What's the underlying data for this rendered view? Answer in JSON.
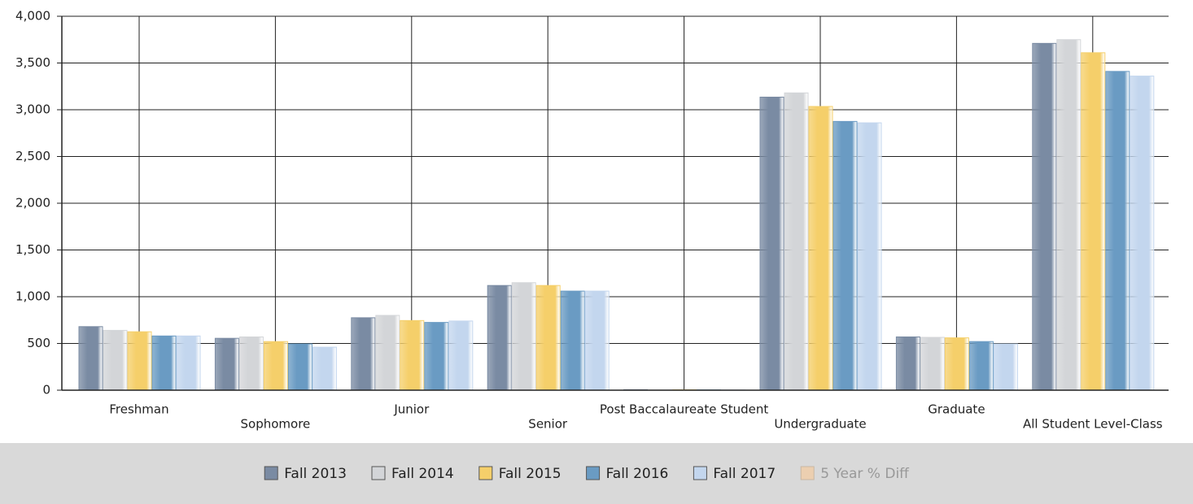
{
  "chart_data": {
    "type": "bar",
    "categories": [
      "Freshman",
      "Sophomore",
      "Junior",
      "Senior",
      "Post Baccalaureate Student",
      "Undergraduate",
      "Graduate",
      "All Student Level-Class"
    ],
    "series": [
      {
        "name": "Fall 2013",
        "color": "#7a8ba3",
        "values": [
          680,
          555,
          775,
          1120,
          5,
          3135,
          570,
          3710
        ]
      },
      {
        "name": "Fall 2014",
        "color": "#d3d5d8",
        "values": [
          640,
          570,
          800,
          1150,
          3,
          3180,
          565,
          3750
        ]
      },
      {
        "name": "Fall 2015",
        "color": "#f5cf6a",
        "values": [
          625,
          520,
          745,
          1120,
          4,
          3035,
          560,
          3610
        ]
      },
      {
        "name": "Fall 2016",
        "color": "#6a9bc3",
        "values": [
          580,
          495,
          725,
          1060,
          3,
          2875,
          520,
          3410
        ]
      },
      {
        "name": "Fall 2017",
        "color": "#c3d6ee",
        "values": [
          580,
          460,
          740,
          1060,
          2,
          2860,
          495,
          3360
        ]
      },
      {
        "name": "5 Year % Diff",
        "color": "#eccfb0",
        "hidden": true,
        "values": [
          null,
          null,
          null,
          null,
          null,
          null,
          null,
          null
        ]
      }
    ],
    "ylim": [
      0,
      4000
    ],
    "yticks": [
      0,
      500,
      {
        "value": 1000,
        "label": "1,000"
      },
      {
        "value": 1500,
        "label": "1,500"
      },
      {
        "value": 2000,
        "label": "2,000"
      },
      {
        "value": 2500,
        "label": "2,500"
      },
      {
        "value": 3000,
        "label": "3,000"
      },
      {
        "value": 3500,
        "label": "3,500"
      },
      {
        "value": 4000,
        "label": "4,000"
      }
    ],
    "grid": true,
    "legend": "bottom"
  }
}
